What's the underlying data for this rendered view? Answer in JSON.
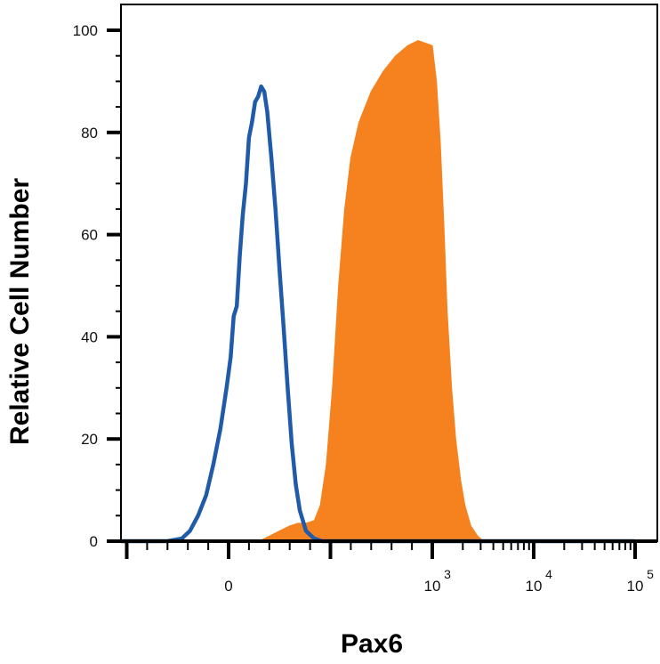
{
  "chart_data": {
    "type": "area",
    "title": "",
    "xlabel": "Pax6",
    "ylabel": "Relative Cell Number",
    "xscale": "biexponential",
    "ylim": [
      0,
      100
    ],
    "y_ticks": [
      {
        "value": 0,
        "label": "0"
      },
      {
        "value": 20,
        "label": "20"
      },
      {
        "value": 40,
        "label": "40"
      },
      {
        "value": 60,
        "label": "60"
      },
      {
        "value": 80,
        "label": "80"
      },
      {
        "value": 100,
        "label": "100"
      }
    ],
    "x_ticks": [
      {
        "value": 0,
        "base": "0",
        "exp": ""
      },
      {
        "value": 1000,
        "base": "10",
        "exp": "3"
      },
      {
        "value": 10000,
        "base": "10",
        "exp": "4"
      },
      {
        "value": 100000,
        "base": "10",
        "exp": "5"
      }
    ],
    "series": [
      {
        "style": "filled",
        "color": "#F5821F",
        "points": [
          [
            -600,
            0
          ],
          [
            20,
            0
          ],
          [
            80,
            0
          ],
          [
            150,
            0
          ],
          [
            200,
            1
          ],
          [
            250,
            2
          ],
          [
            300,
            3
          ],
          [
            340,
            3.5
          ],
          [
            380,
            3.5
          ],
          [
            420,
            4
          ],
          [
            450,
            7
          ],
          [
            480,
            15
          ],
          [
            510,
            30
          ],
          [
            540,
            50
          ],
          [
            570,
            65
          ],
          [
            600,
            75
          ],
          [
            640,
            82
          ],
          [
            700,
            88
          ],
          [
            760,
            92
          ],
          [
            820,
            95
          ],
          [
            880,
            97
          ],
          [
            930,
            98
          ],
          [
            1000,
            97
          ],
          [
            1100,
            90
          ],
          [
            1200,
            78
          ],
          [
            1300,
            62
          ],
          [
            1400,
            45
          ],
          [
            1550,
            30
          ],
          [
            1700,
            20
          ],
          [
            1900,
            12
          ],
          [
            2100,
            7
          ],
          [
            2400,
            3
          ],
          [
            2800,
            1
          ],
          [
            3200,
            0
          ],
          [
            100000,
            0
          ]
        ]
      },
      {
        "style": "line",
        "color": "#1F5BA8",
        "points": [
          [
            -600,
            0
          ],
          [
            -300,
            0
          ],
          [
            -230,
            0.5
          ],
          [
            -190,
            2
          ],
          [
            -150,
            5
          ],
          [
            -110,
            9
          ],
          [
            -75,
            15
          ],
          [
            -40,
            22
          ],
          [
            -10,
            30
          ],
          [
            10,
            36
          ],
          [
            25,
            44
          ],
          [
            40,
            46
          ],
          [
            55,
            56
          ],
          [
            70,
            64
          ],
          [
            85,
            70
          ],
          [
            100,
            79
          ],
          [
            115,
            82
          ],
          [
            130,
            86
          ],
          [
            145,
            87
          ],
          [
            160,
            89
          ],
          [
            175,
            88
          ],
          [
            190,
            84
          ],
          [
            210,
            75
          ],
          [
            230,
            65
          ],
          [
            250,
            53
          ],
          [
            270,
            42
          ],
          [
            290,
            30
          ],
          [
            310,
            19
          ],
          [
            330,
            11
          ],
          [
            350,
            6
          ],
          [
            380,
            2
          ],
          [
            420,
            0.5
          ],
          [
            460,
            0
          ],
          [
            100000,
            0
          ]
        ]
      }
    ]
  }
}
